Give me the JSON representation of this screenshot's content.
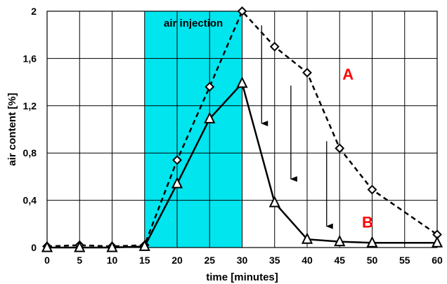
{
  "chart_data": {
    "type": "line",
    "xlabel": "time [minutes]",
    "ylabel": "air content [%]",
    "x_ticks": [
      "0",
      "5",
      "10",
      "15",
      "20",
      "25",
      "30",
      "35",
      "40",
      "45",
      "50",
      "55",
      "60"
    ],
    "y_ticks": [
      "0",
      "0,4",
      "0,8",
      "1,2",
      "1,6",
      "2"
    ],
    "ylim": [
      0,
      2
    ],
    "grid": true,
    "highlight_band": {
      "label": "air injection",
      "x_range": [
        15,
        30
      ],
      "color": "#00e5ee"
    },
    "series": [
      {
        "name": "A",
        "color": "#ff0000",
        "line_style": "dashed",
        "marker": "diamond",
        "points": [
          {
            "x": "0",
            "y": 0.01
          },
          {
            "x": "5",
            "y": 0.02
          },
          {
            "x": "10",
            "y": 0.01
          },
          {
            "x": "15",
            "y": 0.02
          },
          {
            "x": "20",
            "y": 0.74
          },
          {
            "x": "25",
            "y": 1.36
          },
          {
            "x": "30",
            "y": 2.0
          },
          {
            "x": "35",
            "y": 1.7
          },
          {
            "x": "40",
            "y": 1.48
          },
          {
            "x": "45",
            "y": 0.84
          },
          {
            "x": "50",
            "y": 0.49
          },
          {
            "x": "60",
            "y": 0.11
          }
        ]
      },
      {
        "name": "B",
        "color": "#ff0000",
        "line_style": "solid",
        "marker": "triangle",
        "points": [
          {
            "x": "0",
            "y": 0.0
          },
          {
            "x": "5",
            "y": 0.0
          },
          {
            "x": "10",
            "y": 0.0
          },
          {
            "x": "15",
            "y": 0.01
          },
          {
            "x": "20",
            "y": 0.54
          },
          {
            "x": "25",
            "y": 1.09
          },
          {
            "x": "30",
            "y": 1.39
          },
          {
            "x": "35",
            "y": 0.38
          },
          {
            "x": "40",
            "y": 0.07
          },
          {
            "x": "45",
            "y": 0.05
          },
          {
            "x": "50",
            "y": 0.04
          },
          {
            "x": "60",
            "y": 0.04
          }
        ]
      }
    ],
    "annotations": [
      {
        "type": "arrow",
        "from": {
          "x": "33",
          "y": 1.88
        },
        "to": {
          "x": "33",
          "y": 1.05
        }
      },
      {
        "type": "arrow",
        "from": {
          "x": "37.5",
          "y": 1.37
        },
        "to": {
          "x": "37.5",
          "y": 0.58
        }
      },
      {
        "type": "arrow",
        "from": {
          "x": "43",
          "y": 0.9
        },
        "to": {
          "x": "43",
          "y": 0.18
        }
      }
    ]
  }
}
